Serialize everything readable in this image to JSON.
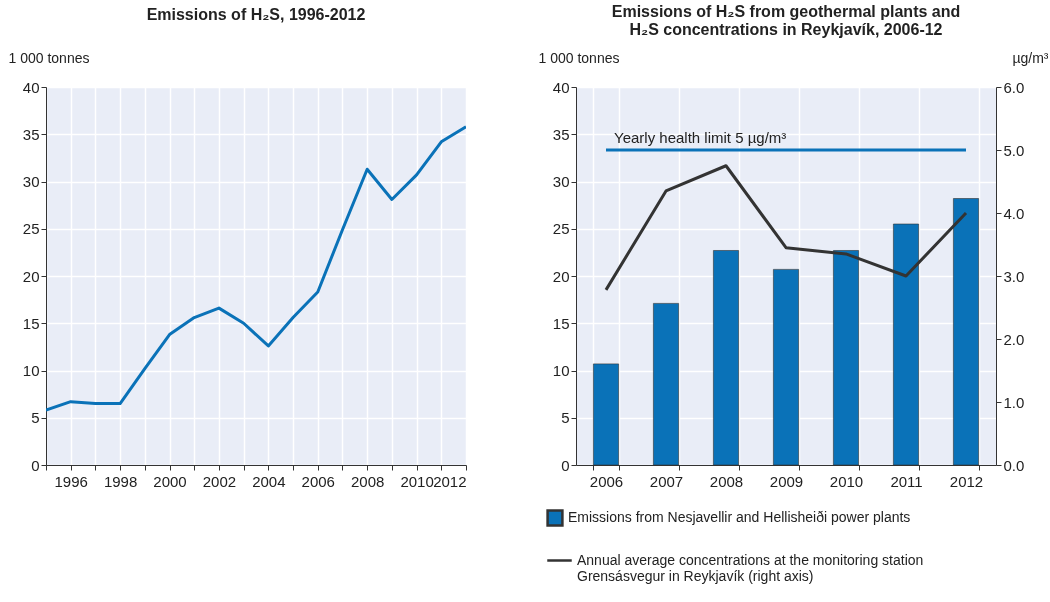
{
  "chart_data": [
    {
      "type": "line",
      "title": "Emissions of H₂S, 1996-2012",
      "ylabel": "1 000 tonnes",
      "color": "#0a72b8",
      "x": [
        1995,
        1996,
        1997,
        1998,
        1999,
        2000,
        2001,
        2002,
        2003,
        2004,
        2005,
        2006,
        2007,
        2008,
        2009,
        2010,
        2011,
        2012
      ],
      "values": [
        5.8,
        6.7,
        6.5,
        6.5,
        10.2,
        13.8,
        15.6,
        16.6,
        15.0,
        12.6,
        15.6,
        18.3,
        24.9,
        31.3,
        28.1,
        30.7,
        34.2,
        35.8
      ],
      "xlim": [
        1995,
        2012
      ],
      "xticks": [
        {
          "value": 1995,
          "label": null
        },
        1996,
        {
          "value": 1997,
          "label": null
        },
        1998,
        {
          "value": 1999,
          "label": null
        },
        2000,
        {
          "value": 2001,
          "label": null
        },
        2002,
        {
          "value": 2003,
          "label": null
        },
        2004,
        {
          "value": 2005,
          "label": null
        },
        2006,
        {
          "value": 2007,
          "label": null
        },
        2008,
        {
          "value": 2009,
          "label": null
        },
        2010,
        {
          "value": 2011,
          "label": null
        },
        2012
      ],
      "ylim": [
        0,
        40
      ],
      "yticks": [
        0,
        5,
        10,
        15,
        20,
        25,
        30,
        35,
        40
      ],
      "grid": true
    },
    {
      "type": "bar",
      "title": "Emissions of H₂S from geothermal plants and H₂S concentrations in Reykjavík, 2006-12",
      "ylabel": "1 000 tonnes",
      "y2label": "µg/m³",
      "categories": [
        "2006",
        "2007",
        "2008",
        "2009",
        "2010",
        "2011",
        "2012"
      ],
      "series": [
        {
          "name": "Emissions from Nesjavellir and Hellisheiði power plants",
          "type": "bar",
          "color": "#0a72b8",
          "values": [
            10.7,
            17.1,
            22.7,
            20.7,
            22.7,
            25.5,
            28.2
          ]
        },
        {
          "name": "Annual average concentrations at the monitoring station Grensásvegur in Reykjavík (right axis)",
          "type": "line",
          "axis": "y2",
          "color": "#333333",
          "values": [
            2.78,
            4.35,
            4.75,
            3.45,
            3.35,
            3.0,
            4.0
          ]
        }
      ],
      "ylim": [
        0,
        40
      ],
      "yticks": [
        0,
        5,
        10,
        15,
        20,
        25,
        30,
        35,
        40
      ],
      "y2lim": [
        0,
        6
      ],
      "y2ticks": [
        {
          "value": 0,
          "label": "0.0"
        },
        {
          "value": 1,
          "label": "1.0"
        },
        {
          "value": 2,
          "label": "2.0"
        },
        {
          "value": 3,
          "label": "3.0"
        },
        {
          "value": 4,
          "label": "4.0"
        },
        {
          "value": 5,
          "label": "5.0"
        },
        {
          "value": 6,
          "label": "6.0"
        }
      ],
      "ref_lines": [
        {
          "axis": "y2",
          "value": 5,
          "label": "Yearly health limit 5 µg/m³",
          "color": "#0a72b8"
        }
      ],
      "legend": "bottom",
      "grid": true
    }
  ]
}
